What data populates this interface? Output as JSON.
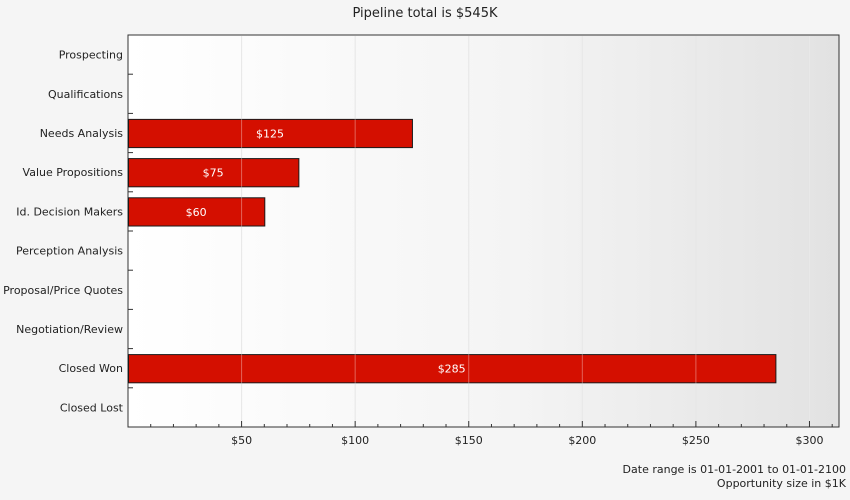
{
  "chart_data": {
    "type": "bar",
    "orientation": "horizontal",
    "title": "Pipeline total is $545K",
    "categories": [
      "Prospecting",
      "Qualifications",
      "Needs Analysis",
      "Value Propositions",
      "Id. Decision Makers",
      "Perception Analysis",
      "Proposal/Price Quotes",
      "Negotiation/Review",
      "Closed Won",
      "Closed Lost"
    ],
    "values": [
      0,
      0,
      125,
      75,
      60,
      0,
      0,
      0,
      285,
      0
    ],
    "data_labels": [
      "",
      "",
      "$125",
      "$75",
      "$60",
      "",
      "",
      "",
      "$285",
      ""
    ],
    "x_ticks": [
      50,
      100,
      150,
      200,
      250,
      300
    ],
    "x_tick_labels": [
      "$50",
      "$100",
      "$150",
      "$200",
      "$250",
      "$300"
    ],
    "xlim": [
      0,
      313
    ],
    "grid": true,
    "bar_color": "#d40f00",
    "footer_lines": [
      "Date range is 01-01-2001 to 01-01-2100",
      "Opportunity size in $1K"
    ]
  }
}
